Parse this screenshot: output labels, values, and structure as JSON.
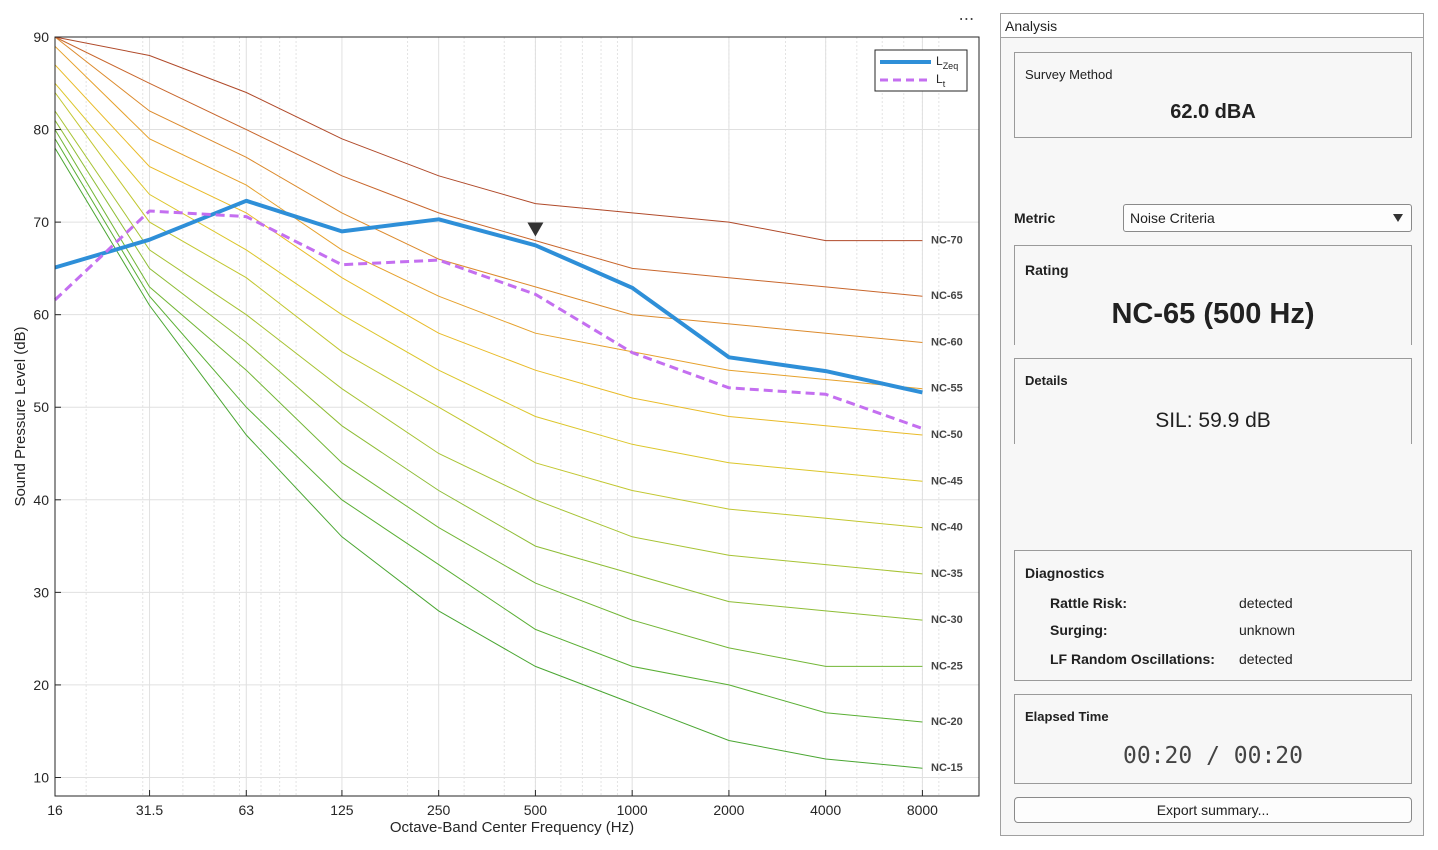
{
  "chart_data": {
    "type": "line",
    "x": [
      16,
      31.5,
      63,
      125,
      250,
      500,
      1000,
      2000,
      4000,
      8000
    ],
    "x_tick_labels": [
      "16",
      "31.5",
      "63",
      "125",
      "250",
      "500",
      "1000",
      "2000",
      "4000",
      "8000"
    ],
    "xscale": "log",
    "xlabel": "Octave-Band Center Frequency (Hz)",
    "ylabel": "Sound Pressure Level (dB)",
    "ylim": [
      8,
      90
    ],
    "y_ticks": [
      10,
      20,
      30,
      40,
      50,
      60,
      70,
      80,
      90
    ],
    "grid": "on",
    "legend_position": "top-right",
    "series": [
      {
        "name": "LZeq",
        "legend_main": "L",
        "legend_sub": "Zeq",
        "color": "#2e8fd8",
        "style": "solid",
        "values": [
          65.1,
          68.1,
          72.3,
          69.0,
          70.3,
          67.5,
          62.9,
          55.4,
          53.9,
          51.6
        ]
      },
      {
        "name": "Lt",
        "legend_main": "L",
        "legend_sub": "t",
        "color": "#c46ff0",
        "style": "dashed",
        "values": [
          61.6,
          71.2,
          70.6,
          65.4,
          65.9,
          62.2,
          55.9,
          52.1,
          51.4,
          47.7
        ]
      }
    ],
    "nc_curves": [
      {
        "label": "NC-15",
        "color": "#4aa632",
        "values": [
          78,
          61,
          47,
          36,
          28,
          22,
          18,
          14,
          12,
          11
        ]
      },
      {
        "label": "NC-20",
        "color": "#5aaf34",
        "values": [
          79,
          62,
          50,
          40,
          33,
          26,
          22,
          20,
          17,
          16
        ]
      },
      {
        "label": "NC-25",
        "color": "#72b636",
        "values": [
          80,
          63,
          54,
          44,
          37,
          31,
          27,
          24,
          22,
          22
        ]
      },
      {
        "label": "NC-30",
        "color": "#8ebd36",
        "values": [
          81,
          65,
          57,
          48,
          41,
          35,
          32,
          29,
          28,
          27
        ]
      },
      {
        "label": "NC-35",
        "color": "#a7c334",
        "values": [
          82,
          67,
          60,
          52,
          45,
          40,
          36,
          34,
          33,
          32
        ]
      },
      {
        "label": "NC-40",
        "color": "#c2c730",
        "values": [
          84,
          70,
          64,
          56,
          50,
          44,
          41,
          39,
          38,
          37
        ]
      },
      {
        "label": "NC-45",
        "color": "#dcc62a",
        "values": [
          85,
          73,
          67,
          60,
          54,
          49,
          46,
          44,
          43,
          42
        ]
      },
      {
        "label": "NC-50",
        "color": "#e9bb28",
        "values": [
          87,
          76,
          71,
          64,
          58,
          54,
          51,
          49,
          48,
          47
        ]
      },
      {
        "label": "NC-55",
        "color": "#e6a12c",
        "values": [
          89,
          79,
          74,
          67,
          62,
          58,
          56,
          54,
          53,
          52
        ]
      },
      {
        "label": "NC-60",
        "color": "#dc8a2c",
        "values": [
          90,
          82,
          77,
          71,
          66,
          63,
          60,
          59,
          58,
          57
        ]
      },
      {
        "label": "NC-65",
        "color": "#c8662c",
        "values": [
          90,
          85,
          80,
          75,
          71,
          68,
          65,
          64,
          63,
          62
        ]
      },
      {
        "label": "NC-70",
        "color": "#b04a2a",
        "values": [
          90,
          88,
          84,
          79,
          75,
          72,
          71,
          70,
          68,
          68
        ]
      }
    ],
    "marker": {
      "x": 500,
      "y": 69.2,
      "shape": "triangle-down"
    }
  },
  "toolbar": {
    "more_label": "⋯"
  },
  "panel": {
    "title": "Analysis",
    "survey_method": {
      "label": "Survey Method",
      "value": "62.0 dBA"
    },
    "metric": {
      "label": "Metric",
      "selected": "Noise Criteria"
    },
    "rating": {
      "label": "Rating",
      "value": "NC-65 (500 Hz)"
    },
    "details": {
      "label": "Details",
      "value": "SIL: 59.9 dB"
    },
    "diagnostics": {
      "label": "Diagnostics",
      "rows": [
        {
          "key": "Rattle Risk:",
          "value": "detected"
        },
        {
          "key": "Surging:",
          "value": "unknown"
        },
        {
          "key": "LF Random Oscillations:",
          "value": "detected"
        }
      ]
    },
    "elapsed": {
      "label": "Elapsed Time",
      "value": "00:20 / 00:20"
    },
    "export_label": "Export summary..."
  }
}
